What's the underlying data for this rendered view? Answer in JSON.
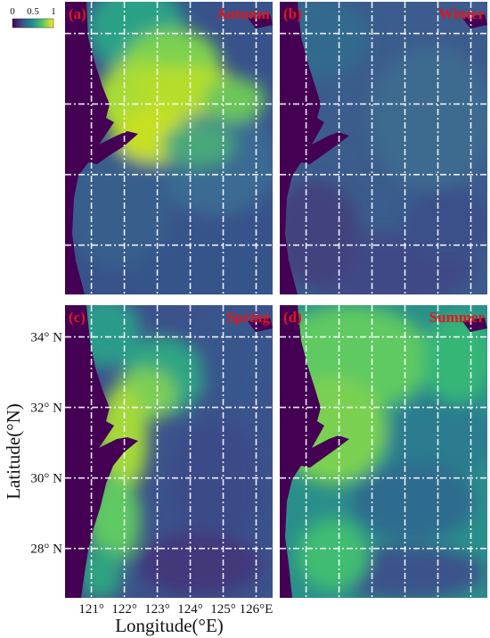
{
  "chart_data": {
    "type": "heatmap",
    "colorbar": {
      "tick_labels": [
        "0",
        "0.5",
        "1"
      ],
      "ticks": [
        0,
        0.5,
        1
      ],
      "colors": [
        "#440154",
        "#3b528b",
        "#21918c",
        "#5ec962",
        "#fde725"
      ]
    },
    "xlabel": "Longitude(°E)",
    "ylabel": "Latitude(°N)",
    "x_ticks": [
      121,
      122,
      123,
      124,
      125,
      126
    ],
    "x_tick_labels": [
      "121°",
      "122°",
      "123°",
      "124°",
      "125°",
      "126°E"
    ],
    "y_ticks": [
      28,
      30,
      32,
      34
    ],
    "y_tick_labels": [
      "28° N",
      "30° N",
      "32° N",
      "34° N"
    ],
    "xlim": [
      120.2,
      126.5
    ],
    "ylim": [
      26.6,
      34.9
    ],
    "grid": true,
    "label_color": "#e8141b",
    "panels": [
      {
        "tag": "(a)",
        "label": "Autumn",
        "season": "autumn"
      },
      {
        "tag": "(b)",
        "label": "Winter",
        "season": "winter"
      },
      {
        "tag": "(c)",
        "label": "Spring",
        "season": "spring"
      },
      {
        "tag": "(d)",
        "label": "Summer",
        "season": "summer"
      }
    ]
  }
}
